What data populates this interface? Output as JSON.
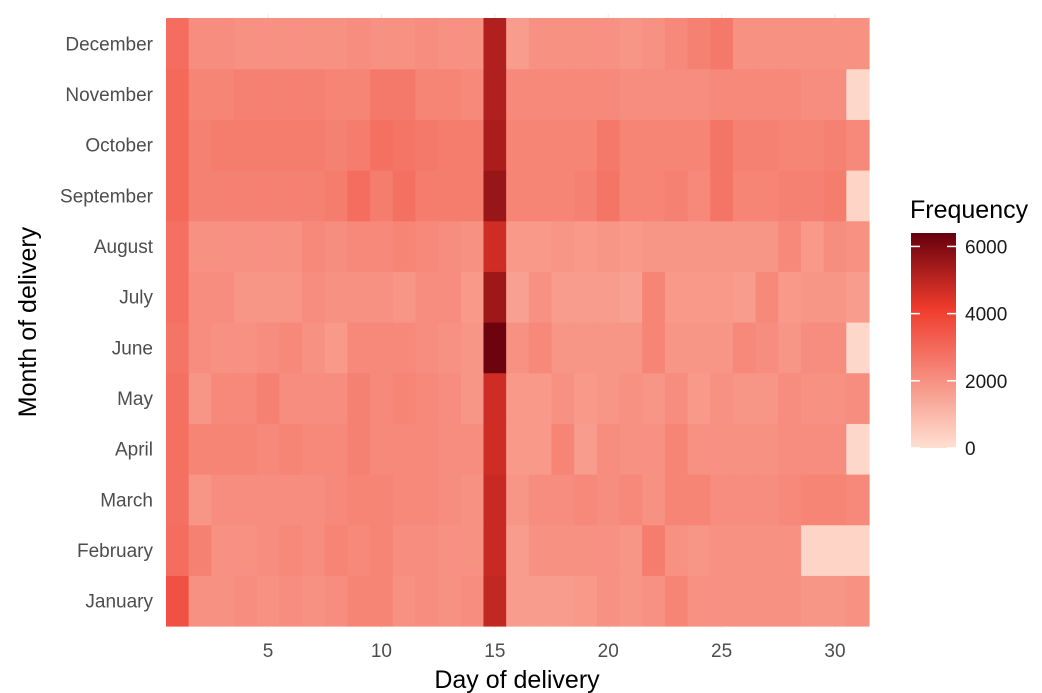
{
  "chart_data": {
    "type": "heatmap",
    "title": "",
    "xlabel": "Day of delivery",
    "ylabel": "Month of delivery",
    "x": [
      1,
      2,
      3,
      4,
      5,
      6,
      7,
      8,
      9,
      10,
      11,
      12,
      13,
      14,
      15,
      16,
      17,
      18,
      19,
      20,
      21,
      22,
      23,
      24,
      25,
      26,
      27,
      28,
      29,
      30,
      31
    ],
    "x_ticks": [
      5,
      10,
      15,
      20,
      25,
      30
    ],
    "x_tick_labels": [
      "5",
      "10",
      "15",
      "20",
      "25",
      "30"
    ],
    "y_categories": [
      "January",
      "February",
      "March",
      "April",
      "May",
      "June",
      "July",
      "August",
      "September",
      "October",
      "November",
      "December"
    ],
    "values": [
      [
        3600,
        2000,
        2000,
        2100,
        2000,
        2100,
        2000,
        2100,
        2300,
        2300,
        2000,
        2100,
        2000,
        2100,
        4900,
        1700,
        1700,
        1700,
        1800,
        2000,
        1900,
        2000,
        2300,
        2000,
        2000,
        2000,
        2000,
        2000,
        1900,
        1900,
        2000
      ],
      [
        2900,
        2400,
        2000,
        2000,
        2100,
        2200,
        2100,
        2300,
        2200,
        2300,
        2100,
        2100,
        2000,
        2000,
        4800,
        1700,
        2000,
        2000,
        2000,
        2000,
        1900,
        2500,
        2000,
        1900,
        2000,
        2000,
        2000,
        2000,
        300,
        300,
        300
      ],
      [
        2800,
        1900,
        2100,
        2100,
        2100,
        2100,
        2100,
        2200,
        2300,
        2300,
        2200,
        2200,
        2100,
        2000,
        4800,
        1900,
        2100,
        2100,
        2200,
        2100,
        2200,
        2000,
        2300,
        2300,
        2100,
        2100,
        2100,
        2200,
        2300,
        2300,
        2200
      ],
      [
        2800,
        2300,
        2300,
        2300,
        2200,
        2300,
        2200,
        2200,
        2400,
        2200,
        2200,
        2200,
        2100,
        2100,
        4700,
        1800,
        1800,
        2300,
        1700,
        2100,
        2000,
        2000,
        2300,
        2000,
        2000,
        2000,
        2000,
        2100,
        2100,
        2100,
        200
      ],
      [
        2800,
        1900,
        2200,
        2200,
        2400,
        2100,
        2100,
        2100,
        2400,
        2200,
        2300,
        2200,
        2100,
        1900,
        4700,
        1800,
        1800,
        2000,
        1800,
        1900,
        2000,
        1900,
        2100,
        1800,
        2000,
        1900,
        1900,
        2100,
        2000,
        2000,
        2100
      ],
      [
        2700,
        2100,
        2000,
        2000,
        2100,
        2200,
        2000,
        1800,
        2200,
        2200,
        2200,
        2100,
        2000,
        1900,
        6300,
        2000,
        2200,
        1900,
        1900,
        1900,
        1900,
        2300,
        1900,
        1900,
        1900,
        2200,
        2100,
        1900,
        2100,
        2100,
        200
      ],
      [
        2800,
        2100,
        2100,
        1900,
        1900,
        1900,
        2100,
        2000,
        2000,
        2000,
        1900,
        2100,
        2100,
        1800,
        5500,
        1600,
        2000,
        1700,
        1700,
        1700,
        1600,
        2300,
        1800,
        1800,
        1800,
        1700,
        2200,
        1800,
        1900,
        1900,
        1700
      ],
      [
        2800,
        2000,
        2000,
        2000,
        2000,
        2000,
        2200,
        2100,
        2200,
        2200,
        2300,
        2200,
        2100,
        2000,
        4700,
        1800,
        1800,
        1900,
        1800,
        1900,
        1800,
        1900,
        1900,
        1900,
        1900,
        1900,
        1900,
        2200,
        1800,
        2100,
        2000
      ],
      [
        3000,
        2400,
        2400,
        2400,
        2400,
        2400,
        2400,
        2500,
        2900,
        2500,
        2800,
        2500,
        2500,
        2500,
        5600,
        2300,
        2300,
        2300,
        2400,
        2700,
        2300,
        2300,
        2400,
        2200,
        2700,
        2300,
        2300,
        2400,
        2400,
        2500,
        300
      ],
      [
        3000,
        2400,
        2500,
        2500,
        2500,
        2500,
        2500,
        2400,
        2500,
        2800,
        2700,
        2600,
        2500,
        2500,
        5300,
        2300,
        2300,
        2300,
        2300,
        2600,
        2300,
        2300,
        2300,
        2300,
        2700,
        2400,
        2400,
        2300,
        2300,
        2400,
        2200
      ],
      [
        3000,
        2300,
        2300,
        2400,
        2400,
        2400,
        2400,
        2300,
        2300,
        2600,
        2600,
        2300,
        2300,
        2200,
        5200,
        2200,
        2200,
        2200,
        2200,
        2200,
        2100,
        2100,
        2100,
        2100,
        2200,
        2200,
        2200,
        2200,
        2100,
        2100,
        200
      ],
      [
        2900,
        2100,
        2100,
        2000,
        2000,
        2000,
        2000,
        2000,
        2100,
        2000,
        2000,
        2100,
        2000,
        2000,
        5200,
        1700,
        2000,
        2000,
        2000,
        2000,
        1900,
        2000,
        2200,
        2400,
        2600,
        2000,
        2000,
        2000,
        2000,
        2000,
        2000
      ]
    ],
    "colorbar": {
      "title": "Frequency",
      "min": 0,
      "max": 6400,
      "ticks": [
        0,
        2000,
        4000,
        6000
      ],
      "tick_labels": [
        "0",
        "2000",
        "4000",
        "6000"
      ],
      "low_color": "#fee0d2",
      "mid_color": "#ef3b2c",
      "high_color": "#67000d"
    },
    "grid": true,
    "legend_position": "right"
  }
}
